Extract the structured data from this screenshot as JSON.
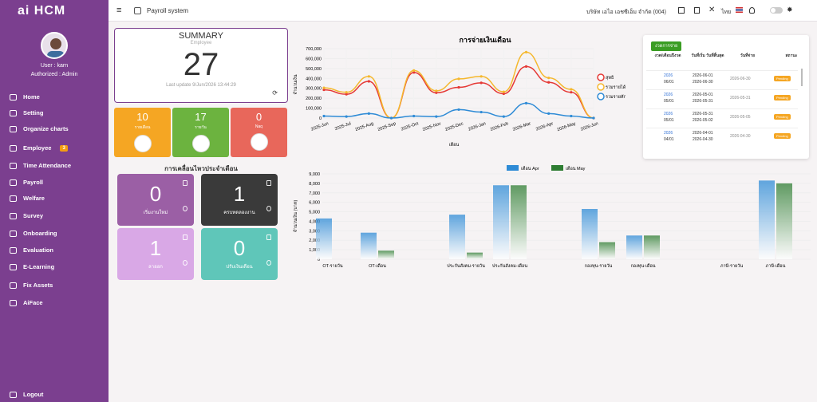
{
  "app": {
    "logo": "ai HCM",
    "module": "Payroll system",
    "company": "บริษัท เอไอ เอชซีเอ็ม จำกัด (004)",
    "lang": "ไทย"
  },
  "user": {
    "name": "User : karn",
    "role": "Authorized : Admin"
  },
  "nav": [
    {
      "label": "Home",
      "icon": "home-icon"
    },
    {
      "label": "Setting",
      "icon": "gear-icon"
    },
    {
      "label": "Organize charts",
      "icon": "org-chart-icon"
    },
    {
      "label": "Employee",
      "icon": "id-card-icon",
      "badge": "3"
    },
    {
      "label": "Time Attendance",
      "icon": "clock-icon"
    },
    {
      "label": "Payroll",
      "icon": "wallet-icon"
    },
    {
      "label": "Welfare",
      "icon": "heart-icon"
    },
    {
      "label": "Survey",
      "icon": "users-icon"
    },
    {
      "label": "Onboarding",
      "icon": "chat-icon"
    },
    {
      "label": "Evaluation",
      "icon": "star-icon"
    },
    {
      "label": "E-Learning",
      "icon": "book-icon"
    },
    {
      "label": "Fix Assets",
      "icon": "box-icon"
    },
    {
      "label": "AiFace",
      "icon": "face-icon"
    }
  ],
  "logout": "Logout",
  "summary": {
    "title": "SUMMARY",
    "subtitle": "Employee",
    "count": "27",
    "updated": "Last update 9/Jun/2026 13:44:29"
  },
  "stats": [
    {
      "value": "10",
      "label": "รายเดือน",
      "color": "#f5a623"
    },
    {
      "value": "17",
      "label": "รายวัน",
      "color": "#6cb33f"
    },
    {
      "value": "0",
      "label": "Naq",
      "color": "#e8675b"
    }
  ],
  "movement": {
    "title": "การเคลื่อนไหวประจำเดือน",
    "tiles": [
      {
        "value": "0",
        "label": "เริ่มงานใหม่",
        "color": "#9b5fa5"
      },
      {
        "value": "1",
        "label": "ครบทดลองงาน",
        "color": "#3a3a3a"
      },
      {
        "value": "1",
        "label": "ลาออก",
        "color": "#d9a8e6"
      },
      {
        "value": "0",
        "label": "ปรับเงินเดือน",
        "color": "#5fc6b9"
      }
    ]
  },
  "payroll_table": {
    "button": "งวดการจ่าย",
    "headers": [
      "งวด/เดือนปีงวด",
      "วันที่เริ่ม วันที่สิ้นสุด",
      "วันที่จ่าย",
      "สถานะ"
    ],
    "rows": [
      {
        "period": "2026",
        "month": "06/01",
        "start": "2026-06-01",
        "end": "2026-06-30",
        "pay": "2026-06-30",
        "status": "Pending"
      },
      {
        "period": "2026",
        "month": "05/01",
        "start": "2026-05-01",
        "end": "2026-05-31",
        "pay": "2026-05-31",
        "status": "Pending"
      },
      {
        "period": "2026",
        "month": "05/01",
        "start": "2026-05-31",
        "end": "2026-05-02",
        "pay": "2026-05-05",
        "status": "Pending"
      },
      {
        "period": "2026",
        "month": "04/01",
        "start": "2026-04-01",
        "end": "2026-04-30",
        "pay": "2026-04-30",
        "status": "Pending"
      }
    ]
  },
  "chart_data": [
    {
      "type": "line",
      "title": "การจ่ายเงินเดือน",
      "xlabel": "เดือน",
      "ylabel": "จำนวนเงิน",
      "ylim": [
        0,
        700000
      ],
      "yticks": [
        "0",
        "100,000",
        "200,000",
        "300,000",
        "400,000",
        "500,000",
        "600,000",
        "700,000"
      ],
      "x": [
        "2025-Jun",
        "2025-Jul",
        "2025-Aug",
        "2025-Sep",
        "2025-Oct",
        "2025-Nov",
        "2025-Dec",
        "2026-Jan",
        "2026-Feb",
        "2026-Mar",
        "2026-Apr",
        "2026-May",
        "2026-Jun"
      ],
      "series": [
        {
          "name": "สุทธิ",
          "color": "#e53935",
          "values": [
            285000,
            240000,
            370000,
            0,
            460000,
            255000,
            310000,
            355000,
            245000,
            520000,
            360000,
            260000,
            0
          ]
        },
        {
          "name": "รวมรายได้",
          "color": "#f5b82e",
          "values": [
            305000,
            260000,
            420000,
            0,
            480000,
            275000,
            395000,
            420000,
            265000,
            665000,
            405000,
            290000,
            0
          ]
        },
        {
          "name": "รวมรายหัก",
          "color": "#2e8bd6",
          "values": [
            20000,
            15000,
            45000,
            0,
            20000,
            15000,
            85000,
            60000,
            15000,
            150000,
            45000,
            20000,
            0
          ]
        }
      ]
    },
    {
      "type": "bar",
      "xlabel": "",
      "ylabel": "จำนวนเงิน (บาท)",
      "ylim": [
        0,
        9000
      ],
      "yticks": [
        "0",
        "1,000",
        "2,000",
        "3,000",
        "4,000",
        "5,000",
        "6,000",
        "7,000",
        "8,000",
        "9,000"
      ],
      "categories": [
        "OT-รายวัน",
        "OT-เดือน",
        "ประกันสังคม-รายวัน",
        "ประกันสังคม-เดือน",
        "กองทุน-รายวัน",
        "กองทุน-เดือน",
        "ภาษี-รายวัน",
        "ภาษี-เดือน"
      ],
      "series": [
        {
          "name": "เดือน Apr",
          "color": "#2e8bd6",
          "values": [
            4300,
            2800,
            4700,
            7800,
            5300,
            2500,
            0,
            8300
          ]
        },
        {
          "name": "เดือน May",
          "color": "#2e7d32",
          "values": [
            0,
            900,
            700,
            7800,
            1800,
            2500,
            0,
            8000
          ]
        }
      ]
    }
  ]
}
